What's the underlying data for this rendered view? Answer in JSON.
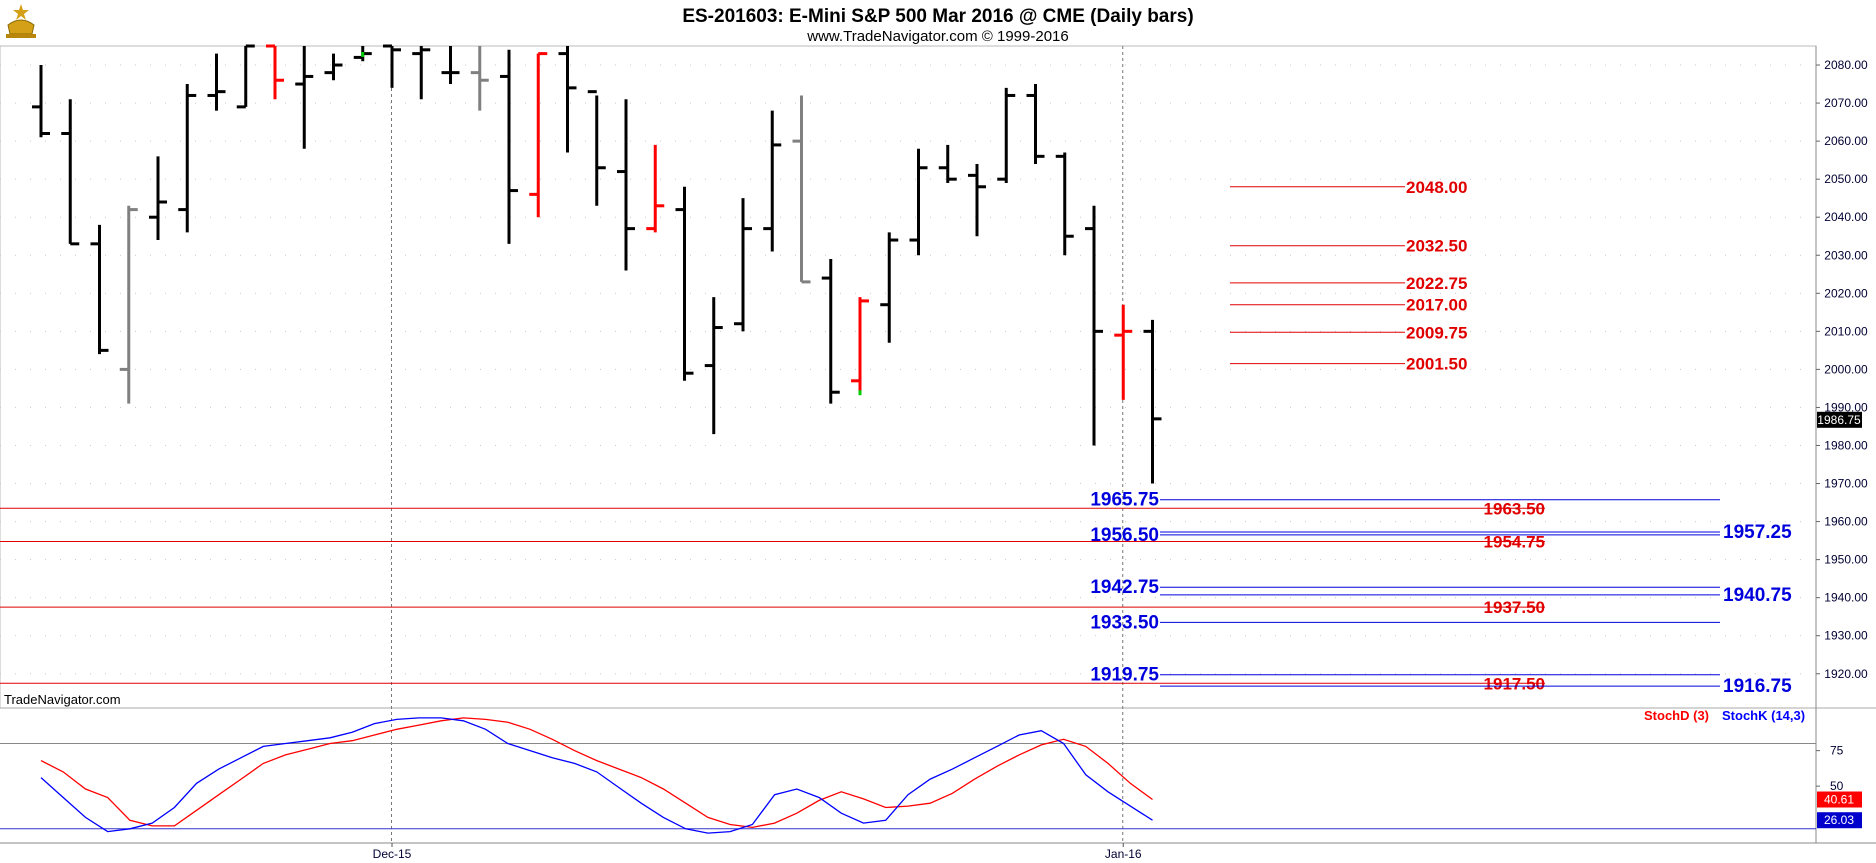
{
  "header": {
    "title": "ES-201603:  E-Mini S&P 500 Mar 2016 @ CME  (Daily bars)",
    "subtitle": "www.TradeNavigator.com © 1999-2016"
  },
  "watermark": "TradeNavigator.com",
  "colors": {
    "up_bar": "#000000",
    "neutral_bar": "#808080",
    "down_bar": "#ff0000",
    "green_tick": "#00cc00",
    "red_level": "#e00000",
    "blue_level": "#0000dd",
    "stoch_d": "#ff0000",
    "stoch_k": "#0000ff",
    "last_price_bg": "#000000",
    "stoch_d_bg": "#ff0000",
    "stoch_k_bg": "#0000cc"
  },
  "chart_data": [
    {
      "type": "bar",
      "subtype": "ohlc",
      "ylim": [
        1911,
        2085
      ],
      "y_ticks": [
        "1920.00",
        "1930.00",
        "1940.00",
        "1950.00",
        "1960.00",
        "1970.00",
        "1980.00",
        "1990.00",
        "2000.00",
        "2010.00",
        "2020.00",
        "2030.00",
        "2040.00",
        "2050.00",
        "2060.00",
        "2070.00",
        "2080.00"
      ],
      "x_labels": [
        {
          "bar": 12,
          "label": "Dec-15"
        },
        {
          "bar": 37,
          "label": "Jan-16"
        }
      ],
      "last_price": "1986.75",
      "bars": [
        {
          "o": 2069,
          "h": 2080,
          "l": 2061,
          "c": 2062,
          "color": "black"
        },
        {
          "o": 2062,
          "h": 2071,
          "l": 2033,
          "c": 2033,
          "color": "black"
        },
        {
          "o": 2033,
          "h": 2038,
          "l": 2004,
          "c": 2005,
          "color": "black"
        },
        {
          "o": 2000,
          "h": 2043,
          "l": 1991,
          "c": 2042,
          "color": "gray"
        },
        {
          "o": 2040,
          "h": 2056,
          "l": 2034,
          "c": 2044,
          "color": "black"
        },
        {
          "o": 2042,
          "h": 2075,
          "l": 2036,
          "c": 2072,
          "color": "black"
        },
        {
          "o": 2072,
          "h": 2083,
          "l": 2068,
          "c": 2073,
          "color": "black"
        },
        {
          "o": 2069,
          "h": 2087,
          "l": 2069,
          "c": 2086,
          "color": "black"
        },
        {
          "o": 2086,
          "h": 2087,
          "l": 2071,
          "c": 2076,
          "color": "red"
        },
        {
          "o": 2075,
          "h": 2086,
          "l": 2058,
          "c": 2077,
          "color": "black"
        },
        {
          "o": 2078,
          "h": 2083,
          "l": 2076,
          "c": 2080,
          "color": "black"
        },
        {
          "o": 2082,
          "h": 2090,
          "l": 2081,
          "c": 2083,
          "color": "black",
          "tick": "green"
        },
        {
          "o": 2085,
          "h": 2090,
          "l": 2074,
          "c": 2084,
          "color": "black"
        },
        {
          "o": 2083,
          "h": 2090,
          "l": 2071,
          "c": 2084,
          "color": "black"
        },
        {
          "o": 2078,
          "h": 2090,
          "l": 2075,
          "c": 2078,
          "color": "black"
        },
        {
          "o": 2078,
          "h": 2086,
          "l": 2068,
          "c": 2076,
          "color": "gray"
        },
        {
          "o": 2077,
          "h": 2084,
          "l": 2033,
          "c": 2047,
          "color": "black"
        },
        {
          "o": 2046,
          "h": 2083,
          "l": 2040,
          "c": 2083,
          "color": "red"
        },
        {
          "o": 2083,
          "h": 2087,
          "l": 2057,
          "c": 2074,
          "color": "black"
        },
        {
          "o": 2073,
          "h": 2072,
          "l": 2043,
          "c": 2053,
          "color": "black"
        },
        {
          "o": 2052,
          "h": 2071,
          "l": 2026,
          "c": 2037,
          "color": "black"
        },
        {
          "o": 2037,
          "h": 2059,
          "l": 2036,
          "c": 2043,
          "color": "red"
        },
        {
          "o": 2042,
          "h": 2048,
          "l": 1997,
          "c": 1999,
          "color": "black"
        },
        {
          "o": 2001,
          "h": 2019,
          "l": 1983,
          "c": 2011,
          "color": "black"
        },
        {
          "o": 2012,
          "h": 2045,
          "l": 2010,
          "c": 2037,
          "color": "black"
        },
        {
          "o": 2037,
          "h": 2068,
          "l": 2031,
          "c": 2059,
          "color": "black"
        },
        {
          "o": 2060,
          "h": 2072,
          "l": 2023,
          "c": 2023,
          "color": "gray"
        },
        {
          "o": 2024,
          "h": 2029,
          "l": 1991,
          "c": 1994,
          "color": "black"
        },
        {
          "o": 1997,
          "h": 2019,
          "l": 1994,
          "c": 2018,
          "color": "red",
          "tick": "green"
        },
        {
          "o": 2017,
          "h": 2036,
          "l": 2007,
          "c": 2034,
          "color": "black"
        },
        {
          "o": 2034,
          "h": 2058,
          "l": 2030,
          "c": 2053,
          "color": "black"
        },
        {
          "o": 2053,
          "h": 2059,
          "l": 2049,
          "c": 2050,
          "color": "black"
        },
        {
          "o": 2051,
          "h": 2054,
          "l": 2035,
          "c": 2048,
          "color": "black"
        },
        {
          "o": 2050,
          "h": 2074,
          "l": 2049,
          "c": 2072,
          "color": "black"
        },
        {
          "o": 2072,
          "h": 2075,
          "l": 2054,
          "c": 2056,
          "color": "black"
        },
        {
          "o": 2056,
          "h": 2057,
          "l": 2030,
          "c": 2035,
          "color": "black"
        },
        {
          "o": 2037,
          "h": 2043,
          "l": 1980,
          "c": 2010,
          "color": "black"
        },
        {
          "o": 2009,
          "h": 2017,
          "l": 1992,
          "c": 2010,
          "color": "red"
        },
        {
          "o": 2010,
          "h": 2013,
          "l": 1970,
          "c": 1987,
          "color": "black"
        }
      ],
      "red_levels_short": [
        {
          "value": 2048.0,
          "label": "2048.00"
        },
        {
          "value": 2032.5,
          "label": "2032.50"
        },
        {
          "value": 2022.75,
          "label": "2022.75"
        },
        {
          "value": 2017.0,
          "label": "2017.00"
        },
        {
          "value": 2009.75,
          "label": "2009.75"
        },
        {
          "value": 2001.5,
          "label": "2001.50"
        }
      ],
      "red_levels_long": [
        {
          "value": 1963.5,
          "label": "1963.50"
        },
        {
          "value": 1954.75,
          "label": "1954.75"
        },
        {
          "value": 1937.5,
          "label": "1937.50"
        },
        {
          "value": 1917.5,
          "label": "1917.50"
        }
      ],
      "blue_levels_left": [
        {
          "value": 1965.75,
          "label": "1965.75"
        },
        {
          "value": 1956.5,
          "label": "1956.50"
        },
        {
          "value": 1942.75,
          "label": "1942.75"
        },
        {
          "value": 1933.5,
          "label": "1933.50"
        },
        {
          "value": 1919.75,
          "label": "1919.75"
        }
      ],
      "blue_levels_right": [
        {
          "value": 1957.25,
          "label": "1957.25"
        },
        {
          "value": 1940.75,
          "label": "1940.75"
        },
        {
          "value": 1916.75,
          "label": "1916.75"
        }
      ]
    },
    {
      "type": "line",
      "ylim": [
        10,
        105
      ],
      "y_ticks": [
        "75",
        "50"
      ],
      "reference_lines": [
        80,
        20
      ],
      "series": [
        {
          "name": "StochD (3)",
          "color": "red",
          "last": "40.61",
          "start_bar": 0,
          "values": [
            68,
            60,
            48,
            42,
            26,
            22,
            22,
            33,
            44,
            55,
            66,
            72,
            76,
            80,
            82,
            86,
            90,
            93,
            96,
            98,
            97,
            95,
            90,
            83,
            75,
            68,
            62,
            56,
            48,
            38,
            28,
            23,
            21,
            24,
            31,
            40,
            46,
            41,
            35,
            36,
            38,
            45,
            55,
            64,
            72,
            79,
            83,
            78,
            66,
            52,
            40.61
          ]
        },
        {
          "name": "StochK (14,3)",
          "color": "blue",
          "last": "26.03",
          "start_bar": 0,
          "values": [
            56,
            42,
            28,
            18,
            20,
            24,
            35,
            52,
            62,
            70,
            78,
            80,
            82,
            84,
            88,
            94,
            97,
            98,
            98,
            96,
            90,
            80,
            75,
            70,
            66,
            60,
            49,
            38,
            28,
            20,
            17,
            18,
            23,
            44,
            48,
            42,
            31,
            24,
            26,
            44,
            55,
            62,
            70,
            78,
            86,
            89,
            80,
            58,
            46,
            36,
            26.03
          ]
        }
      ]
    }
  ]
}
